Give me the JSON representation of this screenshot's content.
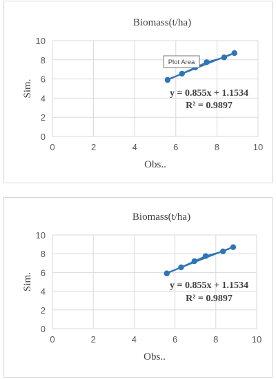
{
  "chart_data": [
    {
      "type": "scatter",
      "title": "Biomass(t/ha)",
      "xlabel": "Obs..",
      "ylabel": "Sim.",
      "xlim": [
        0,
        10
      ],
      "ylim": [
        0,
        10
      ],
      "xticks": [
        "0",
        "2",
        "4",
        "6",
        "8",
        "10"
      ],
      "yticks": [
        "0",
        "2",
        "4",
        "6",
        "8",
        "10"
      ],
      "grid": true,
      "series": [
        {
          "x": [
            5.6,
            6.3,
            6.95,
            7.5,
            8.35,
            8.85
          ],
          "y": [
            5.9,
            6.55,
            7.2,
            7.75,
            8.25,
            8.7
          ]
        }
      ],
      "trendline": {
        "slope": 0.855,
        "intercept": 1.1534
      },
      "equation": "y = 0.855x + 1.1534",
      "r2": "R² = 0.9897",
      "tooltip": "Plot Area",
      "series_color": "#2e75b6"
    },
    {
      "type": "scatter",
      "title": "Biomass(t/ha)",
      "xlabel": "Obs..",
      "ylabel": "Sim.",
      "xlim": [
        0,
        10
      ],
      "ylim": [
        0,
        10
      ],
      "xticks": [
        "0",
        "2",
        "4",
        "6",
        "8",
        "10"
      ],
      "yticks": [
        "0",
        "2",
        "4",
        "6",
        "8",
        "10"
      ],
      "grid": true,
      "series": [
        {
          "x": [
            5.6,
            6.3,
            6.95,
            7.5,
            8.35,
            8.85
          ],
          "y": [
            5.9,
            6.55,
            7.2,
            7.75,
            8.25,
            8.7
          ]
        }
      ],
      "trendline": {
        "slope": 0.855,
        "intercept": 1.1534
      },
      "equation": "y = 0.855x + 1.1534",
      "r2": "R² = 0.9897",
      "series_color": "#2e75b6"
    }
  ]
}
